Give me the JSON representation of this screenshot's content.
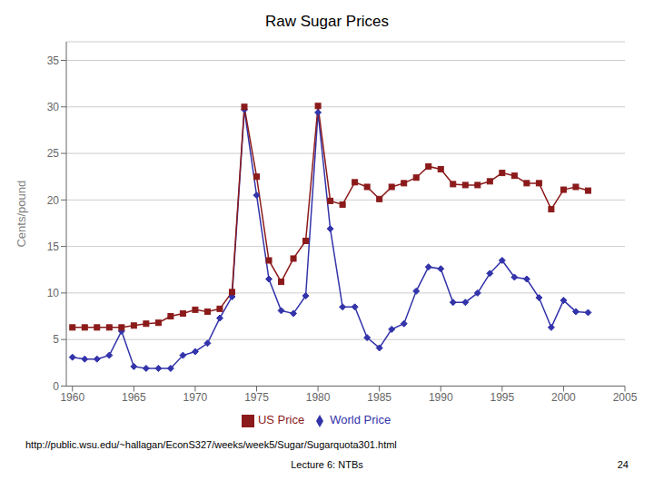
{
  "chart_data": {
    "type": "line",
    "title": "Raw Sugar Prices",
    "ylabel": "Cents/pound",
    "x": [
      1960,
      1961,
      1962,
      1963,
      1964,
      1965,
      1966,
      1967,
      1968,
      1969,
      1970,
      1971,
      1972,
      1973,
      1974,
      1975,
      1976,
      1977,
      1978,
      1979,
      1980,
      1981,
      1982,
      1983,
      1984,
      1985,
      1986,
      1987,
      1988,
      1989,
      1990,
      1991,
      1992,
      1993,
      1994,
      1995,
      1996,
      1997,
      1998,
      1999,
      2000,
      2001,
      2002
    ],
    "series": [
      {
        "name": "World Price",
        "color": "#3333aa",
        "marker": "diamond",
        "line_style": "solid",
        "values": [
          3.1,
          2.9,
          2.9,
          3.3,
          5.9,
          2.1,
          1.9,
          1.9,
          1.9,
          3.3,
          3.7,
          4.6,
          7.3,
          9.6,
          29.7,
          20.5,
          11.5,
          8.1,
          7.8,
          9.7,
          29.4,
          16.9,
          8.5,
          8.5,
          5.2,
          4.1,
          6.1,
          6.7,
          10.2,
          12.8,
          12.6,
          9.0,
          9.0,
          10.0,
          12.1,
          13.5,
          11.7,
          11.5,
          9.5,
          6.3,
          9.2,
          8.0,
          7.9
        ]
      },
      {
        "name": "US Price",
        "color": "#8b1a1a",
        "marker": "square",
        "line_style": "solid",
        "values": [
          6.3,
          6.3,
          6.3,
          6.3,
          6.3,
          6.5,
          6.7,
          6.8,
          7.5,
          7.8,
          8.2,
          8.0,
          8.3,
          10.1,
          30.0,
          22.5,
          13.5,
          11.2,
          13.7,
          15.6,
          30.1,
          19.9,
          19.5,
          21.9,
          21.4,
          20.1,
          21.4,
          21.8,
          22.4,
          23.6,
          23.3,
          21.7,
          21.6,
          21.6,
          22.0,
          22.9,
          22.6,
          21.8,
          21.8,
          19.0,
          21.1,
          21.4,
          21.0
        ]
      }
    ],
    "xlim": [
      1959.5,
      2005
    ],
    "xticks": [
      1960,
      1965,
      1970,
      1975,
      1980,
      1985,
      1990,
      1995,
      2000,
      2005
    ],
    "ylim": [
      0,
      37
    ],
    "yticks": [
      0,
      5,
      10,
      15,
      20,
      25,
      30,
      35
    ],
    "grid": "y",
    "legend": "bottom",
    "annotations": [
      "http://public.wsu.edu/~hallagan/EconS327/weeks/week5/Sugar/Sugarquota301.html",
      "Lecture 6: NTBs",
      "24"
    ]
  }
}
